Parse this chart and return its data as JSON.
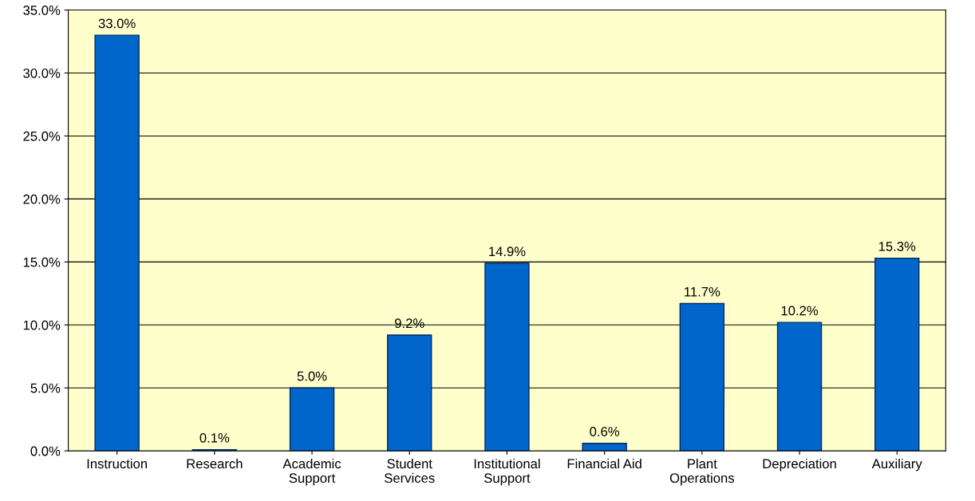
{
  "chart_data": {
    "type": "bar",
    "categories": [
      "Instruction",
      "Research",
      "Academic\nSupport",
      "Student\nServices",
      "Institutional\nSupport",
      "Financial Aid",
      "Plant\nOperations",
      "Depreciation",
      "Auxiliary"
    ],
    "values": [
      33.0,
      0.1,
      5.0,
      9.2,
      14.9,
      0.6,
      11.7,
      10.2,
      15.3
    ],
    "value_labels": [
      "33.0%",
      "0.1%",
      "5.0%",
      "9.2%",
      "14.9%",
      "0.6%",
      "11.7%",
      "10.2%",
      "15.3%"
    ],
    "color": "#0066cc",
    "ylim": [
      0,
      35
    ],
    "yticks": [
      {
        "value": 0,
        "label": "0.0%"
      },
      {
        "value": 5,
        "label": "5.0%"
      },
      {
        "value": 10,
        "label": "10.0%"
      },
      {
        "value": 15,
        "label": "15.0%"
      },
      {
        "value": 20,
        "label": "20.0%"
      },
      {
        "value": 25,
        "label": "25.0%"
      },
      {
        "value": 30,
        "label": "30.0%"
      },
      {
        "value": 35,
        "label": "35.0%"
      }
    ],
    "grid": "y"
  }
}
